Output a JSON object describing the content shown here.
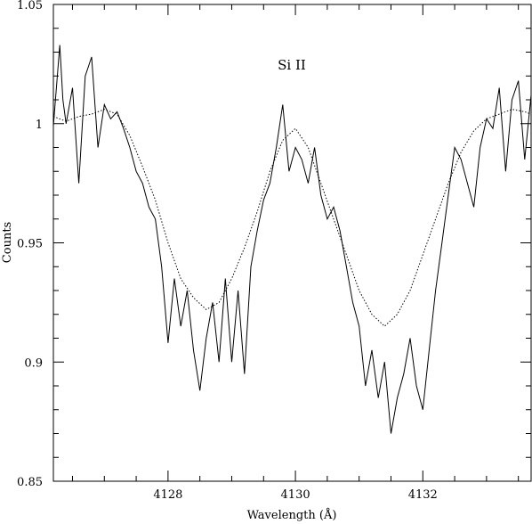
{
  "chart_data": {
    "type": "line",
    "title": "",
    "annotation": "Si II",
    "xlabel": "Wavelength (Å)",
    "ylabel": "Counts",
    "xlim": [
      4126.2,
      4133.7
    ],
    "ylim": [
      0.85,
      1.05
    ],
    "x_ticks": [
      4128,
      4130,
      4132
    ],
    "x_tick_labels": [
      "4128",
      "4130",
      "4132"
    ],
    "y_ticks": [
      0.85,
      0.9,
      0.95,
      1.0,
      1.05
    ],
    "y_tick_labels": [
      "0.85",
      "0.9",
      "0.95",
      "1",
      "1.05"
    ],
    "grid": false,
    "series": [
      {
        "style": "solid",
        "color": "#000000",
        "x": [
          4126.2,
          4126.3,
          4126.35,
          4126.4,
          4126.5,
          4126.6,
          4126.7,
          4126.8,
          4126.9,
          4127.0,
          4127.1,
          4127.2,
          4127.3,
          4127.4,
          4127.5,
          4127.6,
          4127.7,
          4127.8,
          4127.9,
          4128.0,
          4128.1,
          4128.2,
          4128.3,
          4128.4,
          4128.5,
          4128.6,
          4128.7,
          4128.8,
          4128.9,
          4129.0,
          4129.1,
          4129.2,
          4129.3,
          4129.4,
          4129.5,
          4129.6,
          4129.7,
          4129.8,
          4129.9,
          4130.0,
          4130.1,
          4130.2,
          4130.3,
          4130.4,
          4130.5,
          4130.6,
          4130.7,
          4130.8,
          4130.9,
          4131.0,
          4131.1,
          4131.2,
          4131.3,
          4131.4,
          4131.5,
          4131.6,
          4131.7,
          4131.8,
          4131.9,
          4132.0,
          4132.1,
          4132.2,
          4132.3,
          4132.4,
          4132.5,
          4132.6,
          4132.7,
          4132.8,
          4132.9,
          4133.0,
          4133.1,
          4133.2,
          4133.3,
          4133.4,
          4133.5,
          4133.6,
          4133.7
        ],
        "values": [
          0.999,
          1.033,
          1.01,
          1.0,
          1.015,
          0.975,
          1.02,
          1.028,
          0.99,
          1.008,
          1.002,
          1.005,
          0.998,
          0.99,
          0.98,
          0.975,
          0.965,
          0.96,
          0.94,
          0.908,
          0.935,
          0.915,
          0.93,
          0.905,
          0.888,
          0.91,
          0.925,
          0.9,
          0.935,
          0.9,
          0.93,
          0.895,
          0.94,
          0.955,
          0.968,
          0.975,
          0.99,
          1.008,
          0.98,
          0.99,
          0.985,
          0.975,
          0.99,
          0.97,
          0.96,
          0.965,
          0.955,
          0.94,
          0.925,
          0.915,
          0.89,
          0.905,
          0.885,
          0.9,
          0.87,
          0.885,
          0.895,
          0.91,
          0.89,
          0.88,
          0.905,
          0.93,
          0.95,
          0.97,
          0.99,
          0.985,
          0.975,
          0.965,
          0.99,
          1.002,
          0.998,
          1.015,
          0.98,
          1.01,
          1.018,
          0.985,
          1.012
        ]
      },
      {
        "style": "dotted",
        "color": "#000000",
        "x": [
          4126.2,
          4126.4,
          4126.6,
          4126.8,
          4127.0,
          4127.2,
          4127.4,
          4127.6,
          4127.8,
          4128.0,
          4128.2,
          4128.4,
          4128.6,
          4128.8,
          4129.0,
          4129.2,
          4129.4,
          4129.6,
          4129.8,
          4130.0,
          4130.2,
          4130.4,
          4130.6,
          4130.8,
          4131.0,
          4131.2,
          4131.4,
          4131.6,
          4131.8,
          4132.0,
          4132.2,
          4132.4,
          4132.6,
          4132.8,
          4133.0,
          4133.2,
          4133.4,
          4133.6,
          4133.7
        ],
        "values": [
          1.003,
          1.001,
          1.003,
          1.004,
          1.006,
          1.004,
          0.995,
          0.982,
          0.968,
          0.95,
          0.935,
          0.927,
          0.922,
          0.925,
          0.935,
          0.948,
          0.963,
          0.98,
          0.993,
          0.998,
          0.99,
          0.975,
          0.96,
          0.945,
          0.93,
          0.92,
          0.915,
          0.92,
          0.93,
          0.945,
          0.96,
          0.975,
          0.988,
          0.997,
          1.002,
          1.004,
          1.006,
          1.005,
          1.004
        ]
      }
    ]
  }
}
